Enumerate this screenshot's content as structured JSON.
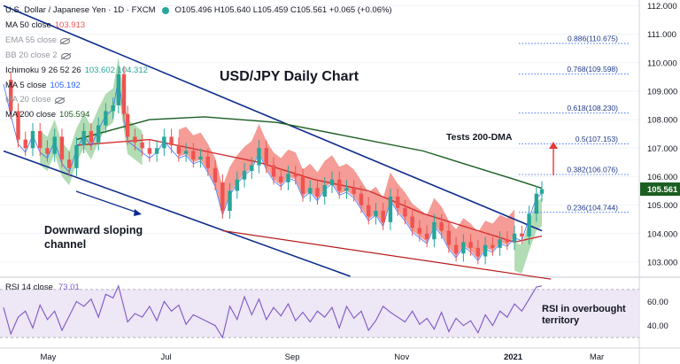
{
  "header": {
    "symbol": "U.S. Dollar / Japanese Yen · 1D · FXCM",
    "ohlc": "O105.496 H105.640 L105.459 C105.561 +0.065 (+0.06%)"
  },
  "indicators": [
    {
      "name": "MA 50 close",
      "value": "103.913",
      "hidden": false,
      "color": "#ef5350"
    },
    {
      "name": "EMA 55 close",
      "value": "",
      "hidden": true,
      "color": "#9598a1"
    },
    {
      "name": "BB 20 close 2",
      "value": "",
      "hidden": true,
      "color": "#9598a1"
    },
    {
      "name": "Ichimoku 9 26 52 26",
      "value": "103.602  104.312",
      "hidden": false,
      "color": "#26a69a"
    },
    {
      "name": "MA 5 close",
      "value": "105.192",
      "hidden": false,
      "color": "#2962ff"
    },
    {
      "name": "MA 20 close",
      "value": "",
      "hidden": true,
      "color": "#9598a1"
    },
    {
      "name": "MA 200 close",
      "value": "105.594",
      "hidden": false,
      "color": "#1b5e20"
    }
  ],
  "colors": {
    "up_candle": "#26a69a",
    "down_candle": "#ef5350",
    "channel": "#0d2b8c",
    "ma200": "#1b5e20",
    "ma50": "#d32f2f",
    "cloud_bear": "#f28b82",
    "cloud_bull": "#a5d6a7",
    "rsi": "#7e57c2",
    "rsi_band": "#ede7f6",
    "fib": "#2962ff",
    "arrow": "#e53935"
  },
  "chart_data": [
    {
      "type": "candlestick",
      "title": "USD/JPY Daily Chart",
      "x_tick_labels": [
        "May",
        "Jul",
        "Sep",
        "Nov",
        "2021",
        "Mar"
      ],
      "y_tick_labels": [
        "103.000",
        "104.000",
        "105.000",
        "106.000",
        "107.000",
        "108.000",
        "109.000",
        "110.000",
        "111.000",
        "112.000"
      ],
      "ylim": [
        102.5,
        112.2
      ],
      "last_price": "105.561",
      "fibonacci_levels": [
        {
          "label": "0.886(110.675)",
          "value": 110.675
        },
        {
          "label": "0.768(109.598)",
          "value": 109.598
        },
        {
          "label": "0.618(108.230)",
          "value": 108.23
        },
        {
          "label": "0.5(107.153)",
          "value": 107.153
        },
        {
          "label": "0.382(106.076)",
          "value": 106.076
        },
        {
          "label": "0.236(104.744)",
          "value": 104.744
        }
      ],
      "annotations": [
        "Tests 200-DMA",
        "Downward sloping channel"
      ],
      "price_path": [
        [
          0,
          109.4
        ],
        [
          4,
          108.3
        ],
        [
          8,
          107.3
        ],
        [
          12,
          107.0
        ],
        [
          16,
          107.6
        ],
        [
          20,
          107.0
        ],
        [
          24,
          106.8
        ],
        [
          28,
          107.4
        ],
        [
          32,
          106.6
        ],
        [
          36,
          106.3
        ],
        [
          40,
          107.1
        ],
        [
          44,
          107.6
        ],
        [
          48,
          107.2
        ],
        [
          52,
          107.8
        ],
        [
          56,
          108.3
        ],
        [
          60,
          108.5
        ],
        [
          63,
          109.6
        ],
        [
          66,
          108.2
        ],
        [
          68,
          107.4
        ],
        [
          72,
          107.2
        ],
        [
          76,
          107.0
        ],
        [
          80,
          106.8
        ],
        [
          84,
          107.0
        ],
        [
          88,
          107.4
        ],
        [
          92,
          107.1
        ],
        [
          96,
          106.8
        ],
        [
          100,
          106.9
        ],
        [
          104,
          106.6
        ],
        [
          108,
          106.7
        ],
        [
          112,
          106.3
        ],
        [
          116,
          105.8
        ],
        [
          120,
          104.8
        ],
        [
          124,
          105.5
        ],
        [
          128,
          105.9
        ],
        [
          132,
          106.2
        ],
        [
          136,
          106.4
        ],
        [
          140,
          107.0
        ],
        [
          144,
          106.4
        ],
        [
          148,
          106.0
        ],
        [
          152,
          105.8
        ],
        [
          156,
          106.1
        ],
        [
          160,
          106.0
        ],
        [
          164,
          105.4
        ],
        [
          168,
          105.6
        ],
        [
          172,
          105.3
        ],
        [
          176,
          105.7
        ],
        [
          180,
          105.9
        ],
        [
          184,
          105.5
        ],
        [
          188,
          105.6
        ],
        [
          192,
          105.4
        ],
        [
          196,
          105.0
        ],
        [
          200,
          104.6
        ],
        [
          204,
          104.8
        ],
        [
          208,
          104.4
        ],
        [
          212,
          105.3
        ],
        [
          216,
          104.9
        ],
        [
          220,
          104.6
        ],
        [
          224,
          104.2
        ],
        [
          228,
          104.0
        ],
        [
          232,
          103.8
        ],
        [
          236,
          104.4
        ],
        [
          240,
          104.1
        ],
        [
          244,
          103.6
        ],
        [
          248,
          103.3
        ],
        [
          252,
          103.7
        ],
        [
          256,
          103.5
        ],
        [
          260,
          103.2
        ],
        [
          264,
          103.6
        ],
        [
          268,
          103.5
        ],
        [
          272,
          103.8
        ],
        [
          276,
          103.7
        ],
        [
          280,
          104.0
        ],
        [
          284,
          103.9
        ],
        [
          288,
          104.7
        ],
        [
          292,
          105.4
        ],
        [
          295,
          105.56
        ]
      ],
      "ma200_path": [
        [
          40,
          107.3
        ],
        [
          80,
          108.0
        ],
        [
          110,
          108.1
        ],
        [
          150,
          107.9
        ],
        [
          190,
          107.4
        ],
        [
          230,
          106.9
        ],
        [
          260,
          106.3
        ],
        [
          280,
          105.9
        ],
        [
          295,
          105.59
        ]
      ],
      "ma50_path": [
        [
          40,
          107.1
        ],
        [
          80,
          107.3
        ],
        [
          110,
          106.9
        ],
        [
          140,
          106.5
        ],
        [
          170,
          105.9
        ],
        [
          200,
          105.5
        ],
        [
          230,
          104.7
        ],
        [
          260,
          104.1
        ],
        [
          280,
          103.7
        ],
        [
          295,
          103.91
        ]
      ],
      "channel_upper": [
        [
          0,
          112.0
        ],
        [
          295,
          104.1
        ]
      ],
      "channel_lower": [
        [
          0,
          106.9
        ],
        [
          190,
          102.5
        ]
      ],
      "support_line": [
        [
          120,
          104.1
        ],
        [
          300,
          102.4
        ]
      ]
    },
    {
      "type": "line",
      "title": "RSI 14 close",
      "value": "73.01",
      "y_tick_labels": [
        "60.00",
        "40.00"
      ],
      "ylim": [
        22,
        78
      ],
      "band": [
        30,
        70
      ],
      "annotation": "RSI in overbought territory",
      "rsi_path": [
        [
          0,
          55
        ],
        [
          4,
          33
        ],
        [
          8,
          47
        ],
        [
          12,
          52
        ],
        [
          16,
          38
        ],
        [
          20,
          57
        ],
        [
          24,
          45
        ],
        [
          28,
          52
        ],
        [
          32,
          36
        ],
        [
          36,
          48
        ],
        [
          40,
          60
        ],
        [
          44,
          56
        ],
        [
          48,
          62
        ],
        [
          52,
          47
        ],
        [
          56,
          66
        ],
        [
          60,
          63
        ],
        [
          63,
          73
        ],
        [
          66,
          55
        ],
        [
          68,
          43
        ],
        [
          72,
          50
        ],
        [
          76,
          47
        ],
        [
          80,
          56
        ],
        [
          84,
          44
        ],
        [
          88,
          60
        ],
        [
          92,
          52
        ],
        [
          96,
          57
        ],
        [
          100,
          41
        ],
        [
          104,
          49
        ],
        [
          108,
          46
        ],
        [
          112,
          43
        ],
        [
          116,
          40
        ],
        [
          120,
          30
        ],
        [
          124,
          56
        ],
        [
          128,
          45
        ],
        [
          132,
          64
        ],
        [
          136,
          49
        ],
        [
          140,
          62
        ],
        [
          144,
          45
        ],
        [
          148,
          55
        ],
        [
          152,
          48
        ],
        [
          156,
          58
        ],
        [
          160,
          44
        ],
        [
          164,
          51
        ],
        [
          168,
          43
        ],
        [
          172,
          52
        ],
        [
          176,
          47
        ],
        [
          180,
          55
        ],
        [
          184,
          38
        ],
        [
          188,
          56
        ],
        [
          192,
          46
        ],
        [
          196,
          52
        ],
        [
          200,
          36
        ],
        [
          204,
          44
        ],
        [
          208,
          56
        ],
        [
          212,
          51
        ],
        [
          216,
          47
        ],
        [
          220,
          43
        ],
        [
          224,
          52
        ],
        [
          228,
          41
        ],
        [
          232,
          46
        ],
        [
          236,
          37
        ],
        [
          240,
          51
        ],
        [
          244,
          35
        ],
        [
          248,
          46
        ],
        [
          252,
          40
        ],
        [
          256,
          44
        ],
        [
          260,
          34
        ],
        [
          264,
          49
        ],
        [
          268,
          40
        ],
        [
          272,
          52
        ],
        [
          276,
          47
        ],
        [
          280,
          58
        ],
        [
          284,
          52
        ],
        [
          288,
          62
        ],
        [
          292,
          72
        ],
        [
          295,
          73
        ]
      ]
    }
  ]
}
